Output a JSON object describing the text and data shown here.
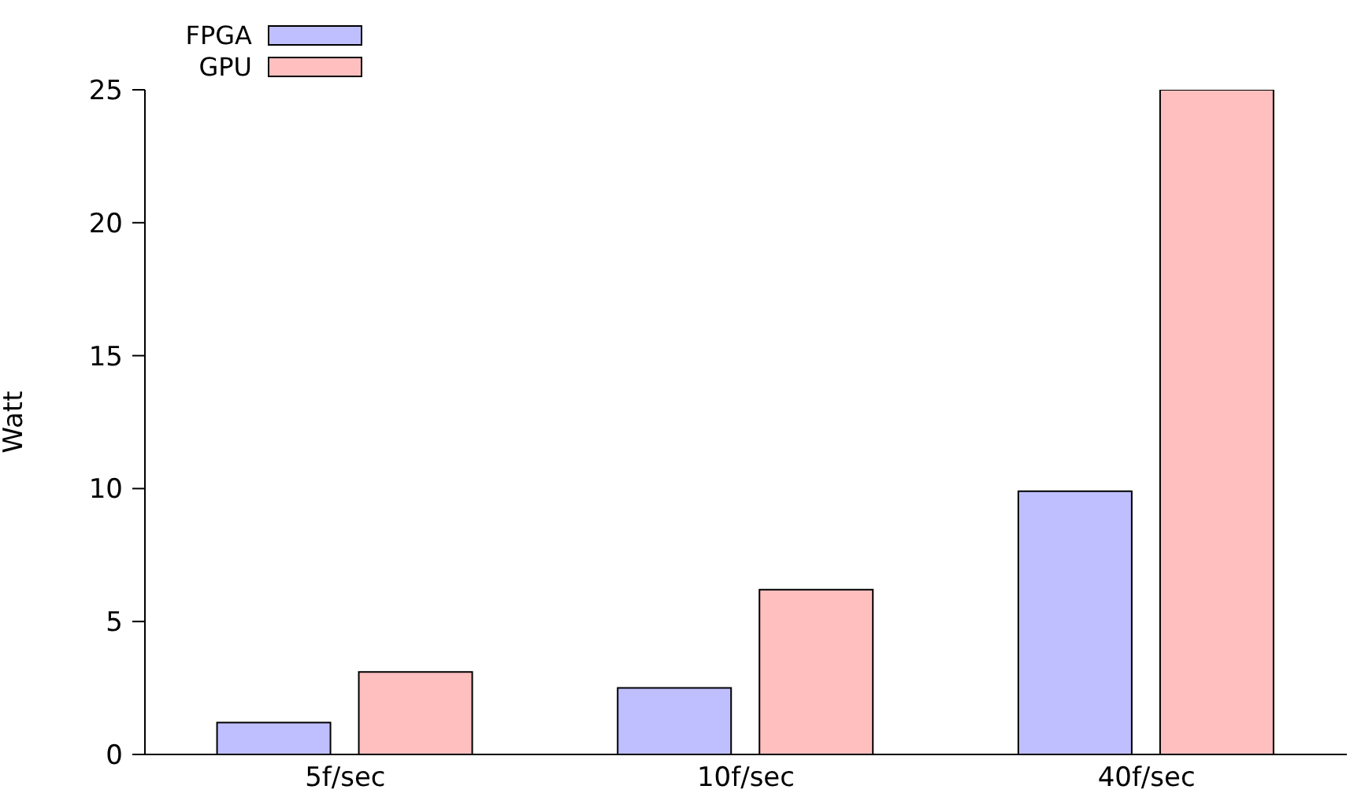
{
  "chart_data": {
    "type": "bar",
    "ylabel": "Watt",
    "categories": [
      "5f/sec",
      "10f/sec",
      "40f/sec"
    ],
    "series": [
      {
        "name": "FPGA",
        "color": "#bfbfff",
        "values": [
          1.2,
          2.5,
          9.9
        ]
      },
      {
        "name": "GPU",
        "color": "#ffbfbf",
        "values": [
          3.1,
          6.2,
          25
        ]
      }
    ],
    "ylim": [
      0,
      25
    ],
    "yticks": [
      0,
      5,
      10,
      15,
      20,
      25
    ],
    "grid": false,
    "legend": "top left"
  }
}
